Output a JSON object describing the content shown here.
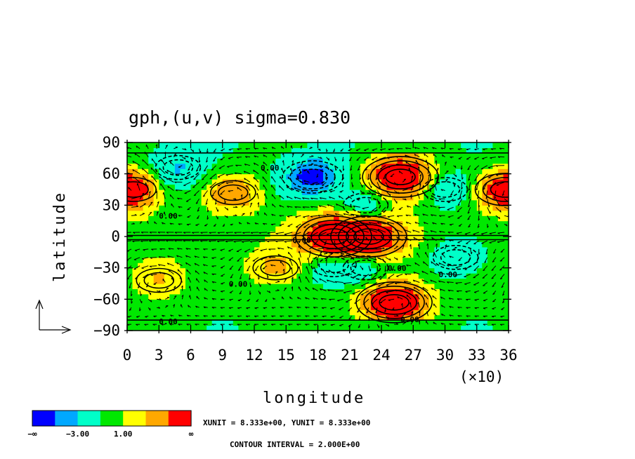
{
  "chart_data": {
    "type": "heatmap",
    "title": "gph,(u,v)  sigma=0.830",
    "xlabel": "longitude",
    "ylabel": "latitude",
    "x_ticks": [
      "0",
      "3",
      "6",
      "9",
      "12",
      "15",
      "18",
      "21",
      "24",
      "27",
      "30",
      "33",
      "36"
    ],
    "x_multiplier": "(×10)",
    "y_ticks": [
      "90",
      "60",
      "30",
      "0",
      "−30",
      "−60",
      "−90"
    ],
    "xlim": [
      0,
      360
    ],
    "ylim": [
      -90,
      90
    ],
    "contour_labels": [
      "0.00",
      "0.00",
      "0.00",
      "0.00",
      "0.00",
      "0.00",
      "0.00",
      "0.00"
    ],
    "colorbar": {
      "colors": [
        "#0000ff",
        "#00a8ff",
        "#00ffc8",
        "#00e800",
        "#ffff00",
        "#ffa800",
        "#ff0000"
      ],
      "tick_labels": [
        "−∞",
        "−3.00",
        "1.00",
        "∞"
      ]
    },
    "unit_text": "XUNIT = 8.333e+00, YUNIT = 8.333e+00",
    "contour_text": "CONTOUR INTERVAL = 2.000E+00",
    "anomalies": [
      {
        "lon": 258,
        "lat": 57,
        "value": 9
      },
      {
        "lon": 252,
        "lat": -63,
        "value": 9
      },
      {
        "lon": 195,
        "lat": 0,
        "value": 8
      },
      {
        "lon": 228,
        "lat": 0,
        "value": 8
      },
      {
        "lon": 357,
        "lat": 45,
        "value": 5
      },
      {
        "lon": 6,
        "lat": 45,
        "value": 4
      },
      {
        "lon": 100,
        "lat": 42,
        "value": 4
      },
      {
        "lon": 30,
        "lat": -42,
        "value": 3
      },
      {
        "lon": 140,
        "lat": -30,
        "value": 3
      },
      {
        "lon": 175,
        "lat": 57,
        "value": -6
      },
      {
        "lon": 225,
        "lat": 30,
        "value": -4
      },
      {
        "lon": 48,
        "lat": 66,
        "value": -3
      },
      {
        "lon": 300,
        "lat": 45,
        "value": -3
      },
      {
        "lon": 195,
        "lat": -27,
        "value": -3
      },
      {
        "lon": 225,
        "lat": -30,
        "value": -3
      },
      {
        "lon": 310,
        "lat": -20,
        "value": -3
      }
    ]
  }
}
